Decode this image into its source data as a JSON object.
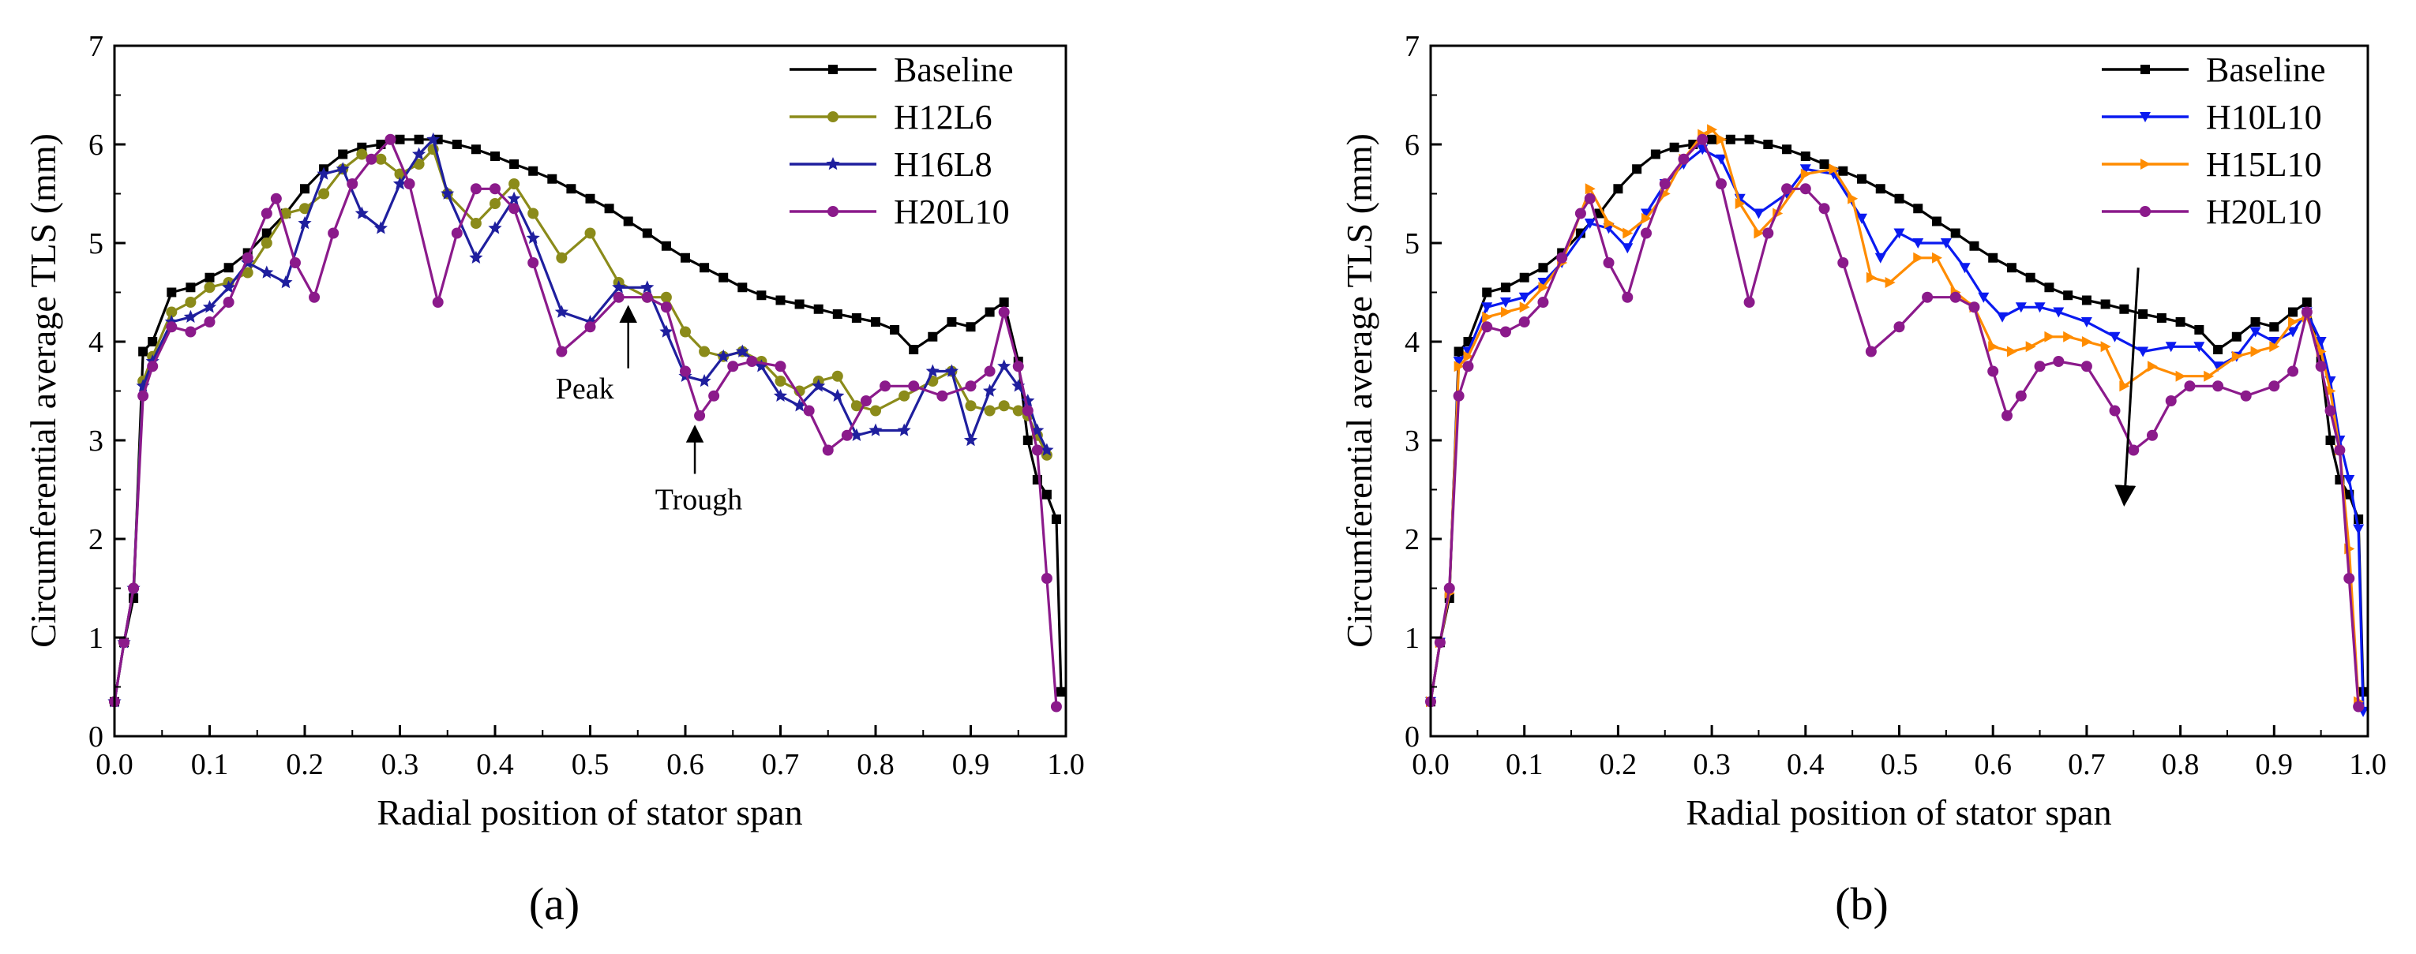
{
  "chart_data": [
    {
      "type": "line",
      "panel_label": "(a)",
      "xlabel": "Radial position of stator span",
      "ylabel": "Circumferential average TLS (mm)",
      "xlim": [
        0.0,
        1.0
      ],
      "ylim": [
        0,
        7
      ],
      "xticks": [
        "0.0",
        "0.1",
        "0.2",
        "0.3",
        "0.4",
        "0.5",
        "0.6",
        "0.7",
        "0.8",
        "0.9",
        "1.0"
      ],
      "yticks": [
        "0",
        "1",
        "2",
        "3",
        "4",
        "5",
        "6",
        "7"
      ],
      "legend_position": "top-right",
      "annotations": [
        {
          "text": "Peak",
          "point": [
            0.54,
            4.45
          ]
        },
        {
          "text": "Trough",
          "point": [
            0.61,
            3.22
          ]
        }
      ],
      "series": [
        {
          "name": "Baseline",
          "color": "#000000",
          "marker": "square",
          "x": [
            0.0,
            0.01,
            0.02,
            0.03,
            0.04,
            0.06,
            0.08,
            0.1,
            0.12,
            0.14,
            0.16,
            0.18,
            0.2,
            0.22,
            0.24,
            0.26,
            0.28,
            0.3,
            0.32,
            0.34,
            0.36,
            0.38,
            0.4,
            0.42,
            0.44,
            0.46,
            0.48,
            0.5,
            0.52,
            0.54,
            0.56,
            0.58,
            0.6,
            0.62,
            0.64,
            0.66,
            0.68,
            0.7,
            0.72,
            0.74,
            0.76,
            0.78,
            0.8,
            0.82,
            0.84,
            0.86,
            0.88,
            0.9,
            0.92,
            0.935,
            0.95,
            0.96,
            0.97,
            0.98,
            0.99,
            0.995
          ],
          "y": [
            0.35,
            0.95,
            1.4,
            3.9,
            4.0,
            4.5,
            4.55,
            4.65,
            4.75,
            4.9,
            5.1,
            5.3,
            5.55,
            5.75,
            5.9,
            5.97,
            6.0,
            6.05,
            6.05,
            6.05,
            6.0,
            5.95,
            5.88,
            5.8,
            5.73,
            5.65,
            5.55,
            5.45,
            5.35,
            5.22,
            5.1,
            4.97,
            4.85,
            4.75,
            4.65,
            4.55,
            4.47,
            4.42,
            4.38,
            4.33,
            4.28,
            4.24,
            4.2,
            4.12,
            3.92,
            4.05,
            4.2,
            4.15,
            4.3,
            4.4,
            3.8,
            3.0,
            2.6,
            2.45,
            2.2,
            0.45
          ]
        },
        {
          "name": "H12L6",
          "color": "#8b8b1a",
          "marker": "circle",
          "x": [
            0.0,
            0.01,
            0.02,
            0.03,
            0.04,
            0.06,
            0.08,
            0.1,
            0.12,
            0.14,
            0.16,
            0.18,
            0.2,
            0.22,
            0.24,
            0.26,
            0.28,
            0.3,
            0.32,
            0.335,
            0.35,
            0.38,
            0.4,
            0.42,
            0.44,
            0.47,
            0.5,
            0.53,
            0.56,
            0.58,
            0.6,
            0.62,
            0.64,
            0.66,
            0.68,
            0.7,
            0.72,
            0.74,
            0.76,
            0.78,
            0.8,
            0.83,
            0.86,
            0.88,
            0.9,
            0.92,
            0.935,
            0.95,
            0.96,
            0.97,
            0.98
          ],
          "y": [
            0.35,
            0.95,
            1.5,
            3.6,
            3.85,
            4.3,
            4.4,
            4.55,
            4.6,
            4.7,
            5.0,
            5.3,
            5.35,
            5.5,
            5.75,
            5.9,
            5.85,
            5.7,
            5.8,
            5.95,
            5.5,
            5.2,
            5.4,
            5.6,
            5.3,
            4.85,
            5.1,
            4.6,
            4.45,
            4.45,
            4.1,
            3.9,
            3.85,
            3.9,
            3.8,
            3.6,
            3.5,
            3.6,
            3.65,
            3.35,
            3.3,
            3.45,
            3.6,
            3.7,
            3.35,
            3.3,
            3.35,
            3.3,
            3.25,
            3.05,
            2.85
          ]
        },
        {
          "name": "H16L8",
          "color": "#1f1f9e",
          "marker": "star",
          "x": [
            0.0,
            0.01,
            0.02,
            0.03,
            0.04,
            0.06,
            0.08,
            0.1,
            0.12,
            0.14,
            0.16,
            0.18,
            0.2,
            0.22,
            0.24,
            0.26,
            0.28,
            0.3,
            0.32,
            0.335,
            0.35,
            0.38,
            0.4,
            0.42,
            0.44,
            0.47,
            0.5,
            0.53,
            0.56,
            0.58,
            0.6,
            0.62,
            0.64,
            0.66,
            0.68,
            0.7,
            0.72,
            0.74,
            0.76,
            0.78,
            0.8,
            0.83,
            0.86,
            0.88,
            0.9,
            0.92,
            0.935,
            0.95,
            0.96,
            0.97,
            0.98
          ],
          "y": [
            0.35,
            0.95,
            1.5,
            3.55,
            3.8,
            4.2,
            4.25,
            4.35,
            4.55,
            4.8,
            4.7,
            4.6,
            5.2,
            5.7,
            5.75,
            5.3,
            5.15,
            5.6,
            5.9,
            6.05,
            5.5,
            4.85,
            5.15,
            5.45,
            5.05,
            4.3,
            4.2,
            4.55,
            4.55,
            4.1,
            3.65,
            3.6,
            3.85,
            3.9,
            3.75,
            3.45,
            3.35,
            3.55,
            3.45,
            3.05,
            3.1,
            3.1,
            3.7,
            3.7,
            3.0,
            3.5,
            3.75,
            3.55,
            3.4,
            3.1,
            2.9
          ]
        },
        {
          "name": "H20L10",
          "color": "#8b1a8b",
          "marker": "circle",
          "x": [
            0.0,
            0.01,
            0.02,
            0.03,
            0.04,
            0.06,
            0.08,
            0.1,
            0.12,
            0.14,
            0.16,
            0.17,
            0.19,
            0.21,
            0.23,
            0.25,
            0.27,
            0.29,
            0.31,
            0.34,
            0.36,
            0.38,
            0.4,
            0.42,
            0.44,
            0.47,
            0.5,
            0.53,
            0.56,
            0.58,
            0.6,
            0.615,
            0.63,
            0.65,
            0.67,
            0.7,
            0.73,
            0.75,
            0.77,
            0.79,
            0.81,
            0.84,
            0.87,
            0.9,
            0.92,
            0.935,
            0.95,
            0.96,
            0.97,
            0.98,
            0.99
          ],
          "y": [
            0.35,
            0.95,
            1.5,
            3.45,
            3.75,
            4.15,
            4.1,
            4.2,
            4.4,
            4.85,
            5.3,
            5.45,
            4.8,
            4.45,
            5.1,
            5.6,
            5.85,
            6.05,
            5.6,
            4.4,
            5.1,
            5.55,
            5.55,
            5.35,
            4.8,
            3.9,
            4.15,
            4.45,
            4.45,
            4.35,
            3.7,
            3.25,
            3.45,
            3.75,
            3.8,
            3.75,
            3.3,
            2.9,
            3.05,
            3.4,
            3.55,
            3.55,
            3.45,
            3.55,
            3.7,
            4.3,
            3.75,
            3.3,
            2.9,
            1.6,
            0.3
          ]
        }
      ]
    },
    {
      "type": "line",
      "panel_label": "(b)",
      "xlabel": "Radial position of stator span",
      "ylabel": "Circumferential average TLS (mm)",
      "xlim": [
        0.0,
        1.0
      ],
      "ylim": [
        0,
        7
      ],
      "xticks": [
        "0.0",
        "0.1",
        "0.2",
        "0.3",
        "0.4",
        "0.5",
        "0.6",
        "0.7",
        "0.8",
        "0.9",
        "1.0"
      ],
      "yticks": [
        "0",
        "1",
        "2",
        "3",
        "4",
        "5",
        "6",
        "7"
      ],
      "legend_position": "top-right",
      "trend_arrow": {
        "from": [
          0.755,
          4.75
        ],
        "to": [
          0.74,
          2.35
        ]
      },
      "series": [
        {
          "name": "Baseline",
          "color": "#000000",
          "marker": "square",
          "x": [
            0.0,
            0.01,
            0.02,
            0.03,
            0.04,
            0.06,
            0.08,
            0.1,
            0.12,
            0.14,
            0.16,
            0.18,
            0.2,
            0.22,
            0.24,
            0.26,
            0.28,
            0.3,
            0.32,
            0.34,
            0.36,
            0.38,
            0.4,
            0.42,
            0.44,
            0.46,
            0.48,
            0.5,
            0.52,
            0.54,
            0.56,
            0.58,
            0.6,
            0.62,
            0.64,
            0.66,
            0.68,
            0.7,
            0.72,
            0.74,
            0.76,
            0.78,
            0.8,
            0.82,
            0.84,
            0.86,
            0.88,
            0.9,
            0.92,
            0.935,
            0.95,
            0.96,
            0.97,
            0.98,
            0.99,
            0.995
          ],
          "y": [
            0.35,
            0.95,
            1.4,
            3.9,
            4.0,
            4.5,
            4.55,
            4.65,
            4.75,
            4.9,
            5.1,
            5.3,
            5.55,
            5.75,
            5.9,
            5.97,
            6.0,
            6.05,
            6.05,
            6.05,
            6.0,
            5.95,
            5.88,
            5.8,
            5.73,
            5.65,
            5.55,
            5.45,
            5.35,
            5.22,
            5.1,
            4.97,
            4.85,
            4.75,
            4.65,
            4.55,
            4.47,
            4.42,
            4.38,
            4.33,
            4.28,
            4.24,
            4.2,
            4.12,
            3.92,
            4.05,
            4.2,
            4.15,
            4.3,
            4.4,
            3.8,
            3.0,
            2.6,
            2.45,
            2.2,
            0.45
          ]
        },
        {
          "name": "H10L10",
          "color": "#0a1af0",
          "marker": "triangle-down",
          "x": [
            0.0,
            0.01,
            0.02,
            0.03,
            0.04,
            0.06,
            0.08,
            0.1,
            0.12,
            0.14,
            0.17,
            0.19,
            0.21,
            0.23,
            0.25,
            0.27,
            0.29,
            0.31,
            0.33,
            0.35,
            0.38,
            0.4,
            0.43,
            0.46,
            0.48,
            0.5,
            0.52,
            0.55,
            0.57,
            0.59,
            0.61,
            0.63,
            0.65,
            0.67,
            0.7,
            0.73,
            0.76,
            0.79,
            0.82,
            0.84,
            0.86,
            0.88,
            0.9,
            0.92,
            0.935,
            0.95,
            0.96,
            0.97,
            0.98,
            0.99,
            0.995
          ],
          "y": [
            0.35,
            0.95,
            1.45,
            3.8,
            3.9,
            4.35,
            4.4,
            4.45,
            4.6,
            4.8,
            5.2,
            5.15,
            4.95,
            5.3,
            5.6,
            5.8,
            5.95,
            5.85,
            5.45,
            5.3,
            5.5,
            5.75,
            5.7,
            5.25,
            4.85,
            5.1,
            5.0,
            5.0,
            4.75,
            4.45,
            4.25,
            4.35,
            4.35,
            4.3,
            4.2,
            4.05,
            3.9,
            3.95,
            3.95,
            3.75,
            3.85,
            4.1,
            4.0,
            4.1,
            4.3,
            4.0,
            3.6,
            3.0,
            2.6,
            2.1,
            0.25
          ]
        },
        {
          "name": "H15L10",
          "color": "#ff8c00",
          "marker": "triangle-right",
          "x": [
            0.0,
            0.01,
            0.02,
            0.03,
            0.04,
            0.06,
            0.08,
            0.1,
            0.12,
            0.14,
            0.17,
            0.19,
            0.21,
            0.23,
            0.25,
            0.27,
            0.29,
            0.3,
            0.31,
            0.33,
            0.35,
            0.37,
            0.4,
            0.43,
            0.45,
            0.47,
            0.49,
            0.52,
            0.54,
            0.56,
            0.58,
            0.6,
            0.62,
            0.64,
            0.66,
            0.68,
            0.7,
            0.72,
            0.74,
            0.77,
            0.8,
            0.83,
            0.86,
            0.88,
            0.9,
            0.92,
            0.935,
            0.95,
            0.96,
            0.97,
            0.98,
            0.99
          ],
          "y": [
            0.35,
            0.95,
            1.45,
            3.75,
            3.85,
            4.25,
            4.3,
            4.35,
            4.55,
            4.8,
            5.55,
            5.2,
            5.1,
            5.25,
            5.5,
            5.85,
            6.1,
            6.15,
            6.05,
            5.4,
            5.1,
            5.3,
            5.7,
            5.75,
            5.45,
            4.65,
            4.6,
            4.85,
            4.85,
            4.5,
            4.35,
            3.95,
            3.9,
            3.95,
            4.05,
            4.05,
            4.0,
            3.95,
            3.55,
            3.75,
            3.65,
            3.65,
            3.85,
            3.9,
            3.95,
            4.2,
            4.25,
            3.9,
            3.5,
            2.9,
            1.9,
            0.35
          ]
        },
        {
          "name": "H20L10",
          "color": "#8b1a8b",
          "marker": "circle",
          "x": [
            0.0,
            0.01,
            0.02,
            0.03,
            0.04,
            0.06,
            0.08,
            0.1,
            0.12,
            0.14,
            0.16,
            0.17,
            0.19,
            0.21,
            0.23,
            0.25,
            0.27,
            0.29,
            0.31,
            0.34,
            0.36,
            0.38,
            0.4,
            0.42,
            0.44,
            0.47,
            0.5,
            0.53,
            0.56,
            0.58,
            0.6,
            0.615,
            0.63,
            0.65,
            0.67,
            0.7,
            0.73,
            0.75,
            0.77,
            0.79,
            0.81,
            0.84,
            0.87,
            0.9,
            0.92,
            0.935,
            0.95,
            0.96,
            0.97,
            0.98,
            0.99
          ],
          "y": [
            0.35,
            0.95,
            1.5,
            3.45,
            3.75,
            4.15,
            4.1,
            4.2,
            4.4,
            4.85,
            5.3,
            5.45,
            4.8,
            4.45,
            5.1,
            5.6,
            5.85,
            6.05,
            5.6,
            4.4,
            5.1,
            5.55,
            5.55,
            5.35,
            4.8,
            3.9,
            4.15,
            4.45,
            4.45,
            4.35,
            3.7,
            3.25,
            3.45,
            3.75,
            3.8,
            3.75,
            3.3,
            2.9,
            3.05,
            3.4,
            3.55,
            3.55,
            3.45,
            3.55,
            3.7,
            4.3,
            3.75,
            3.3,
            2.9,
            1.6,
            0.3
          ]
        }
      ]
    }
  ]
}
